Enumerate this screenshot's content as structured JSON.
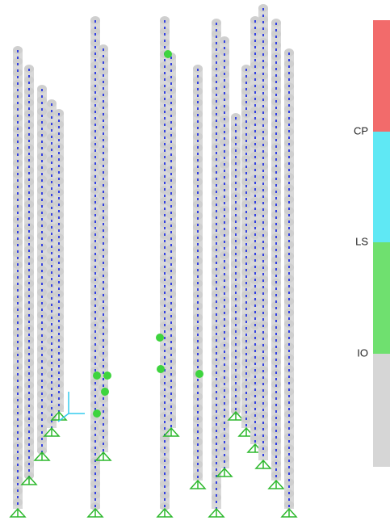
{
  "legend": {
    "labels": [
      "CP",
      "LS",
      "IO"
    ]
  }
}
